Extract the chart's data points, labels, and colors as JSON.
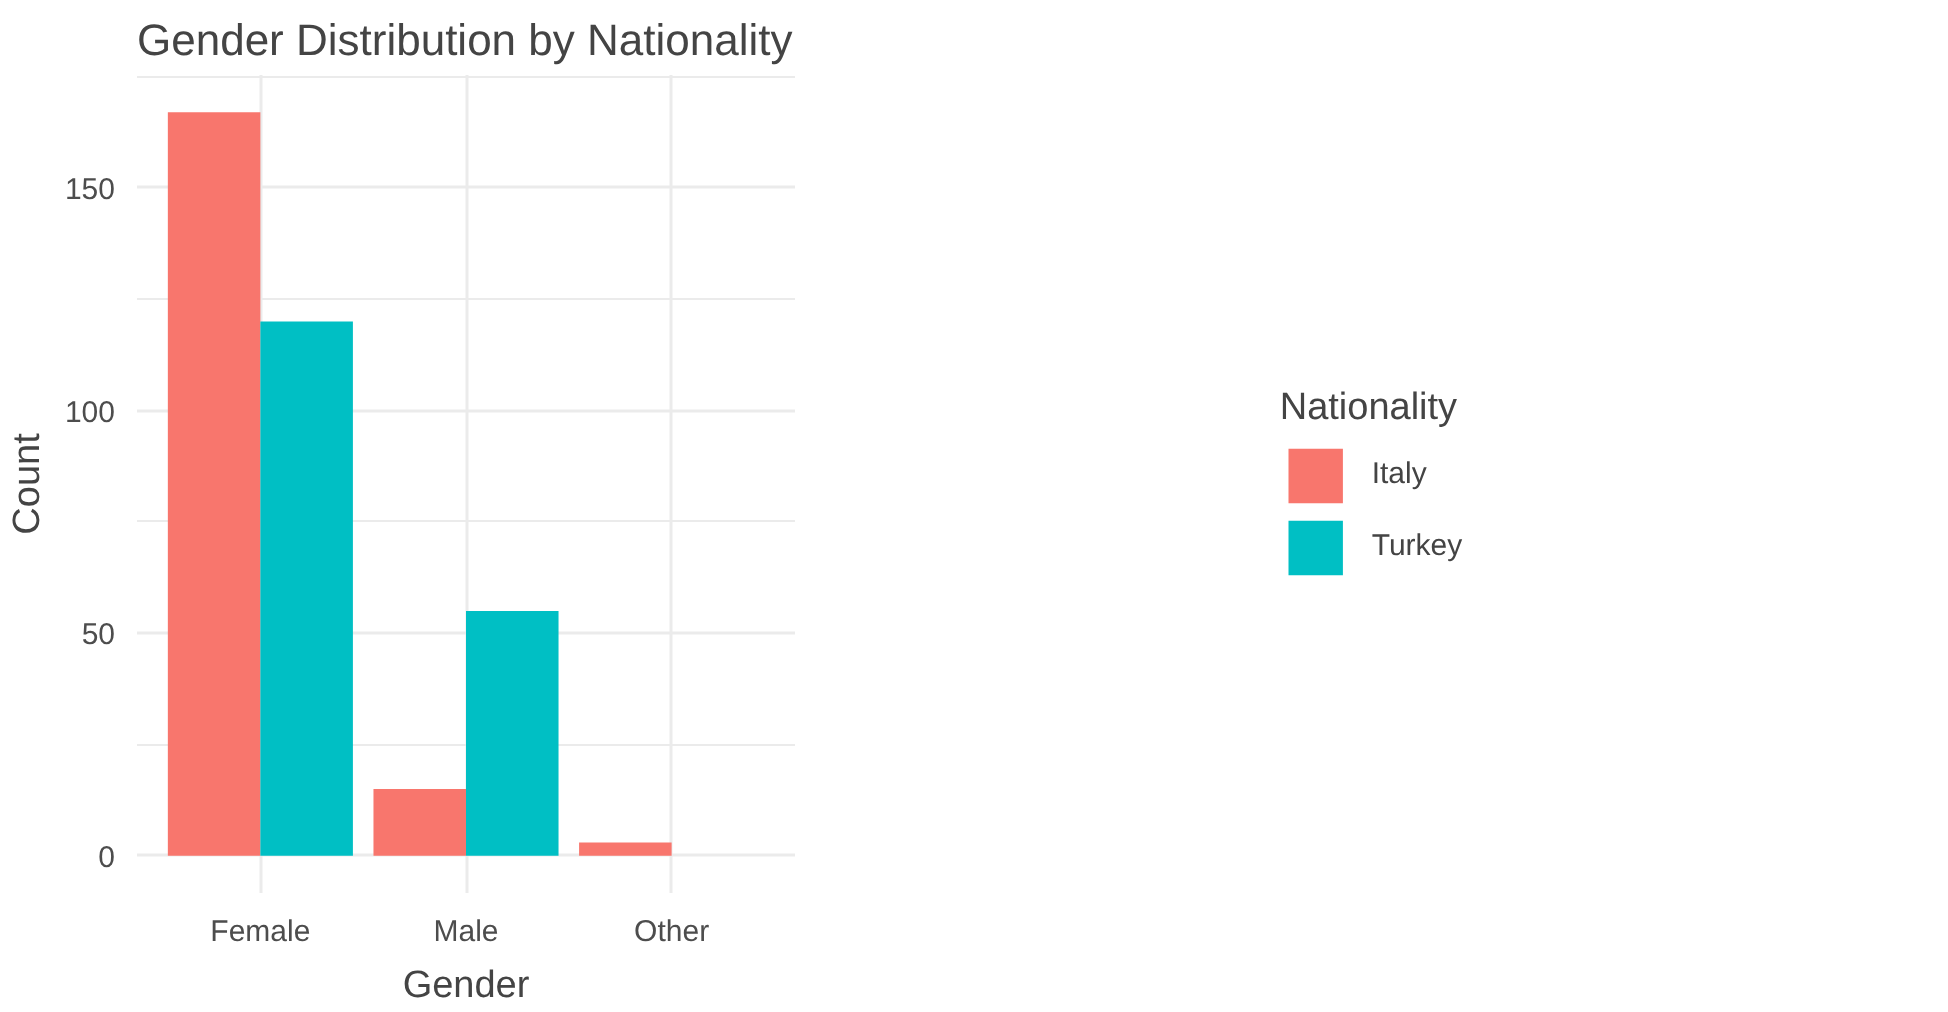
{
  "chart_data": {
    "type": "bar",
    "title": "Gender Distribution by Nationality",
    "xlabel": "Gender",
    "ylabel": "Count",
    "legend_title": "Nationality",
    "categories": [
      "Female",
      "Male",
      "Other"
    ],
    "series": [
      {
        "name": "Italy",
        "color": "#f8766d",
        "values": [
          167,
          15,
          3
        ]
      },
      {
        "name": "Turkey",
        "color": "#00bfc4",
        "values": [
          120,
          55,
          null
        ]
      }
    ],
    "ylim": [
      -8.35,
      175.35
    ],
    "yticks": [
      0,
      50,
      100,
      150
    ],
    "grid": true,
    "legend": "right"
  }
}
